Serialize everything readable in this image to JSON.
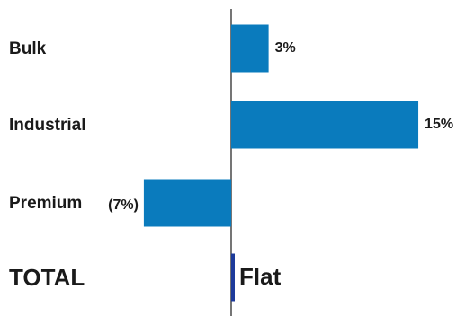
{
  "chart_data": {
    "type": "bar",
    "orientation": "horizontal",
    "categories": [
      "Bulk",
      "Industrial",
      "Premium",
      "TOTAL"
    ],
    "values": [
      3,
      15,
      -7,
      0
    ],
    "value_labels": [
      "3%",
      "15%",
      "(7%)",
      "Flat"
    ],
    "unit": "%",
    "title": "",
    "xlabel": "",
    "ylabel": "",
    "xlim": [
      -15,
      18
    ],
    "grid": false,
    "legend": "none"
  },
  "colors": {
    "bar": "#0a7bbd",
    "total_bar": "#1d3a9a",
    "axis": "#1a1a1a",
    "text": "#1a1a1a"
  }
}
